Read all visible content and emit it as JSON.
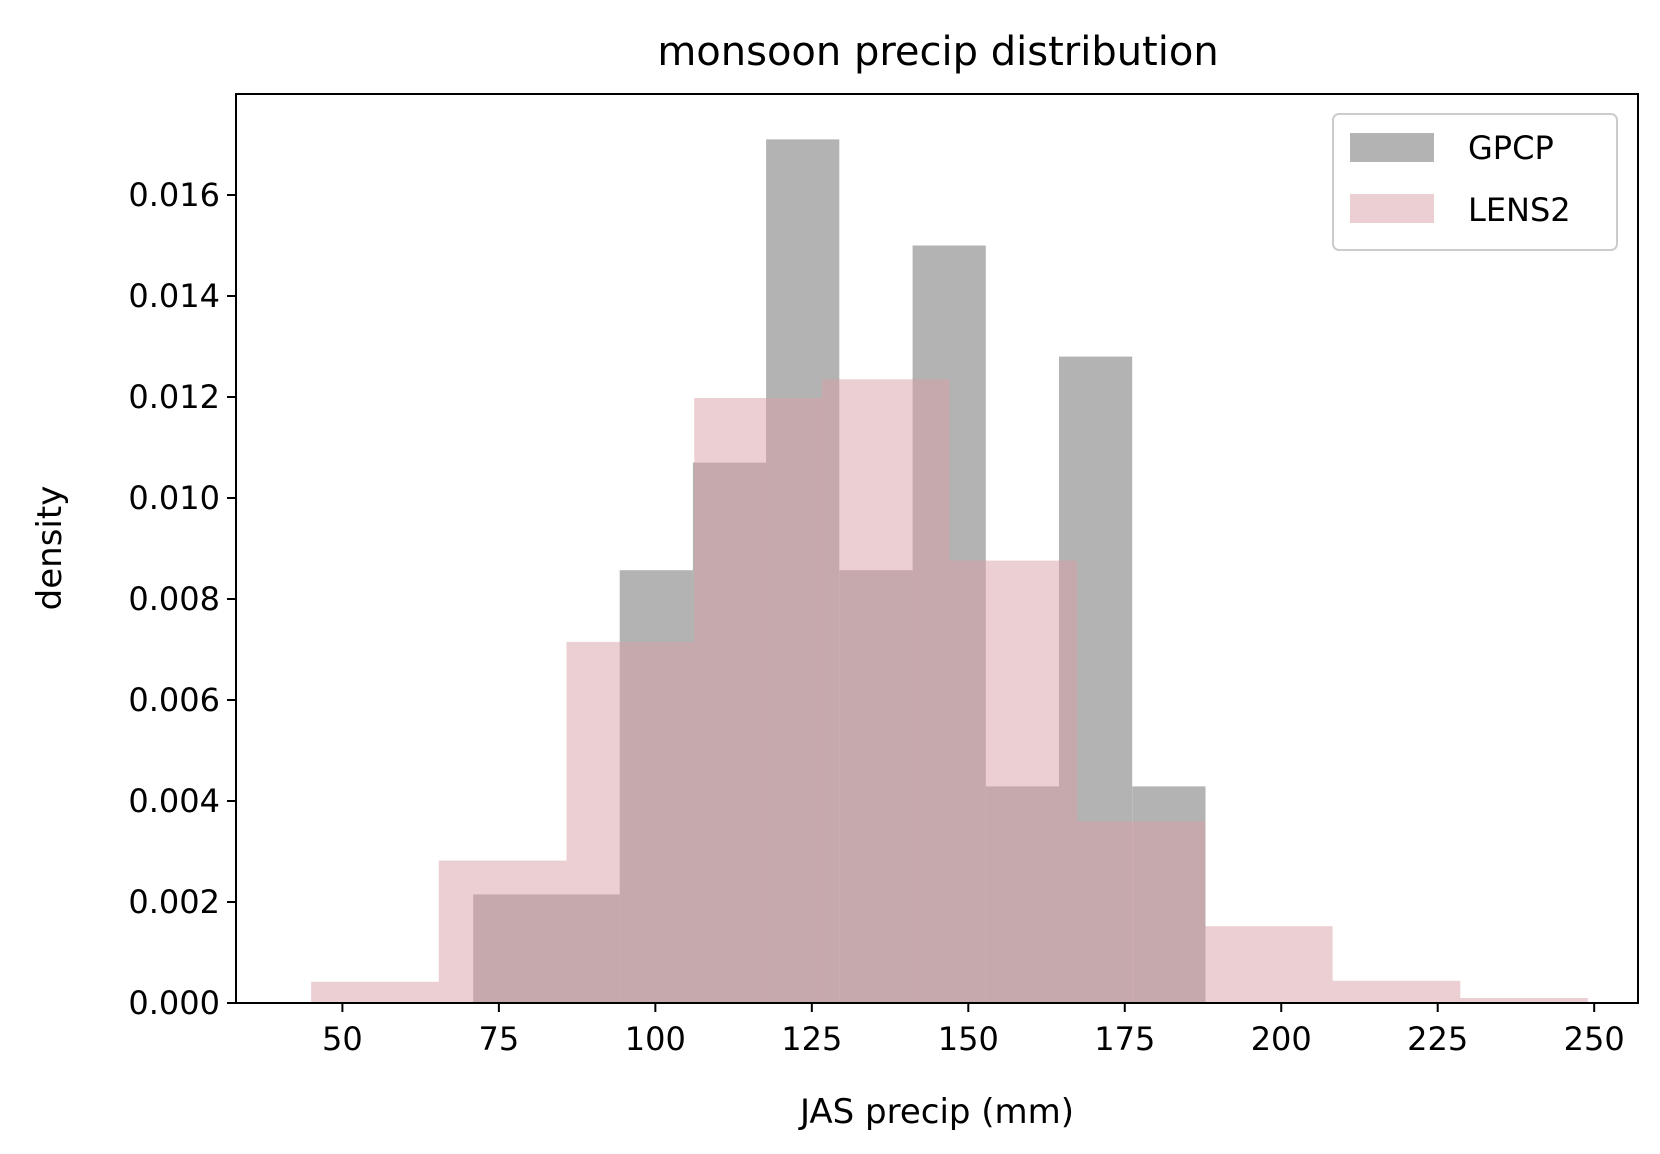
{
  "chart_data": {
    "type": "histogram",
    "title": "monsoon precip distribution",
    "xlabel": "JAS precip (mm)",
    "ylabel": "density",
    "xlim": [
      33,
      257
    ],
    "ylim": [
      0,
      0.018
    ],
    "xticks": [
      50,
      75,
      100,
      125,
      150,
      175,
      200,
      225,
      250
    ],
    "xtick_labels": [
      "50",
      "75",
      "100",
      "125",
      "150",
      "175",
      "200",
      "225",
      "250"
    ],
    "yticks": [
      0.0,
      0.002,
      0.004,
      0.006,
      0.008,
      0.01,
      0.012,
      0.014,
      0.016
    ],
    "ytick_labels": [
      "0.000",
      "0.002",
      "0.004",
      "0.006",
      "0.008",
      "0.010",
      "0.012",
      "0.014",
      "0.016"
    ],
    "grid": false,
    "legend_position": "top-right",
    "series": [
      {
        "name": "GPCP",
        "color": "#808080",
        "opacity": 0.6,
        "bin_edges": [
          70.9,
          94.3,
          106.0,
          117.7,
          129.4,
          141.1,
          152.8,
          164.5,
          176.2,
          187.9
        ],
        "values": [
          0.00215,
          0.00857,
          0.0107,
          0.0171,
          0.00857,
          0.015,
          0.00429,
          0.0128,
          0.00429
        ]
      },
      {
        "name": "LENS2",
        "color": "#d9a0a5",
        "opacity": 0.5,
        "bin_edges": [
          45.0,
          65.4,
          85.8,
          106.2,
          126.6,
          147.0,
          167.4,
          187.8,
          208.2,
          228.6,
          249.0
        ],
        "values": [
          0.00042,
          0.00282,
          0.00715,
          0.01198,
          0.01235,
          0.00876,
          0.0036,
          0.00152,
          0.00044,
          0.0001
        ]
      }
    ]
  }
}
